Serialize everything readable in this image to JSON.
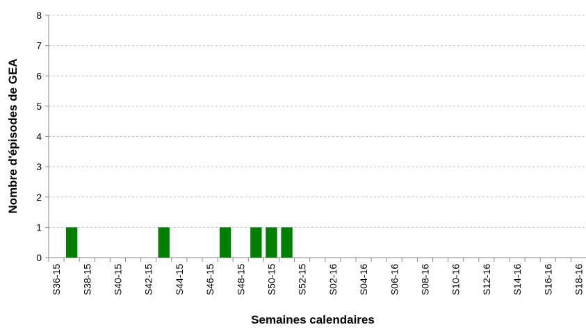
{
  "chart_data": {
    "type": "bar",
    "x_label": "Semaines calendaires",
    "y_label": "Nombre d'épisodes de GEA",
    "categories": [
      "S36-15",
      null,
      "S38-15",
      null,
      "S40-15",
      null,
      "S42-15",
      null,
      "S44-15",
      null,
      "S46-15",
      null,
      "S48-15",
      null,
      "S50-15",
      null,
      "S52-15",
      null,
      "S02-16",
      null,
      "S04-16",
      null,
      "S06-16",
      null,
      "S08-16",
      null,
      "S10-16",
      null,
      "S12-16",
      null,
      "S14-16",
      null,
      "S16-16",
      null,
      "S18-16"
    ],
    "values": [
      0,
      1,
      0,
      0,
      0,
      0,
      0,
      1,
      0,
      0,
      0,
      1,
      0,
      1,
      1,
      1,
      0,
      0,
      0,
      0,
      0,
      0,
      0,
      0,
      0,
      0,
      0,
      0,
      0,
      0,
      0,
      0,
      0,
      0,
      0
    ],
    "color": "#008000",
    "ylim": [
      0,
      8
    ],
    "yticks": [
      0,
      1,
      2,
      3,
      4,
      5,
      6,
      7,
      8
    ],
    "grid": true
  }
}
